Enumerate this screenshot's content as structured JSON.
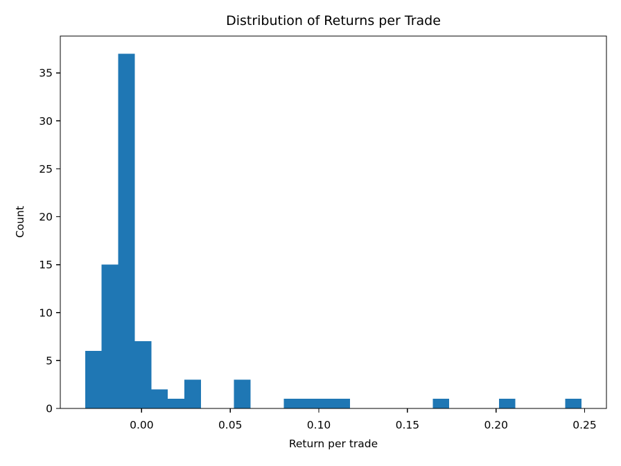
{
  "chart_data": {
    "type": "bar",
    "subtype": "histogram",
    "title": "Distribution of Returns per Trade",
    "xlabel": "Return per trade",
    "ylabel": "Count",
    "bar_color": "#1f77b4",
    "axis_color": "#000000",
    "background_color": "#ffffff",
    "grid": false,
    "legend": null,
    "bin_edges": [
      -0.0319,
      -0.02256,
      -0.01322,
      -0.00388,
      0.00546,
      0.0148,
      0.02414,
      0.03348,
      0.04282,
      0.05216,
      0.0615,
      0.07084,
      0.08018,
      0.08952,
      0.09886,
      0.1082,
      0.11754,
      0.12688,
      0.13622,
      0.14556,
      0.1549,
      0.16424,
      0.17358,
      0.18292,
      0.19226,
      0.2016,
      0.21094,
      0.22028,
      0.22962,
      0.23896,
      0.2483
    ],
    "counts": [
      6,
      15,
      37,
      7,
      2,
      1,
      3,
      0,
      0,
      3,
      0,
      0,
      1,
      1,
      1,
      1,
      0,
      0,
      0,
      0,
      0,
      1,
      0,
      0,
      0,
      1,
      0,
      0,
      0,
      1
    ],
    "xlim": [
      -0.04591,
      0.26231
    ],
    "ylim": [
      0,
      38.85
    ],
    "x_ticks": [
      {
        "value": 0.0,
        "label": "0.00"
      },
      {
        "value": 0.05,
        "label": "0.05"
      },
      {
        "value": 0.1,
        "label": "0.10"
      },
      {
        "value": 0.15,
        "label": "0.15"
      },
      {
        "value": 0.2,
        "label": "0.20"
      },
      {
        "value": 0.25,
        "label": "0.25"
      }
    ],
    "y_ticks": [
      {
        "value": 0,
        "label": "0"
      },
      {
        "value": 5,
        "label": "5"
      },
      {
        "value": 10,
        "label": "10"
      },
      {
        "value": 15,
        "label": "15"
      },
      {
        "value": 20,
        "label": "20"
      },
      {
        "value": 25,
        "label": "25"
      },
      {
        "value": 30,
        "label": "30"
      },
      {
        "value": 35,
        "label": "35"
      }
    ]
  }
}
